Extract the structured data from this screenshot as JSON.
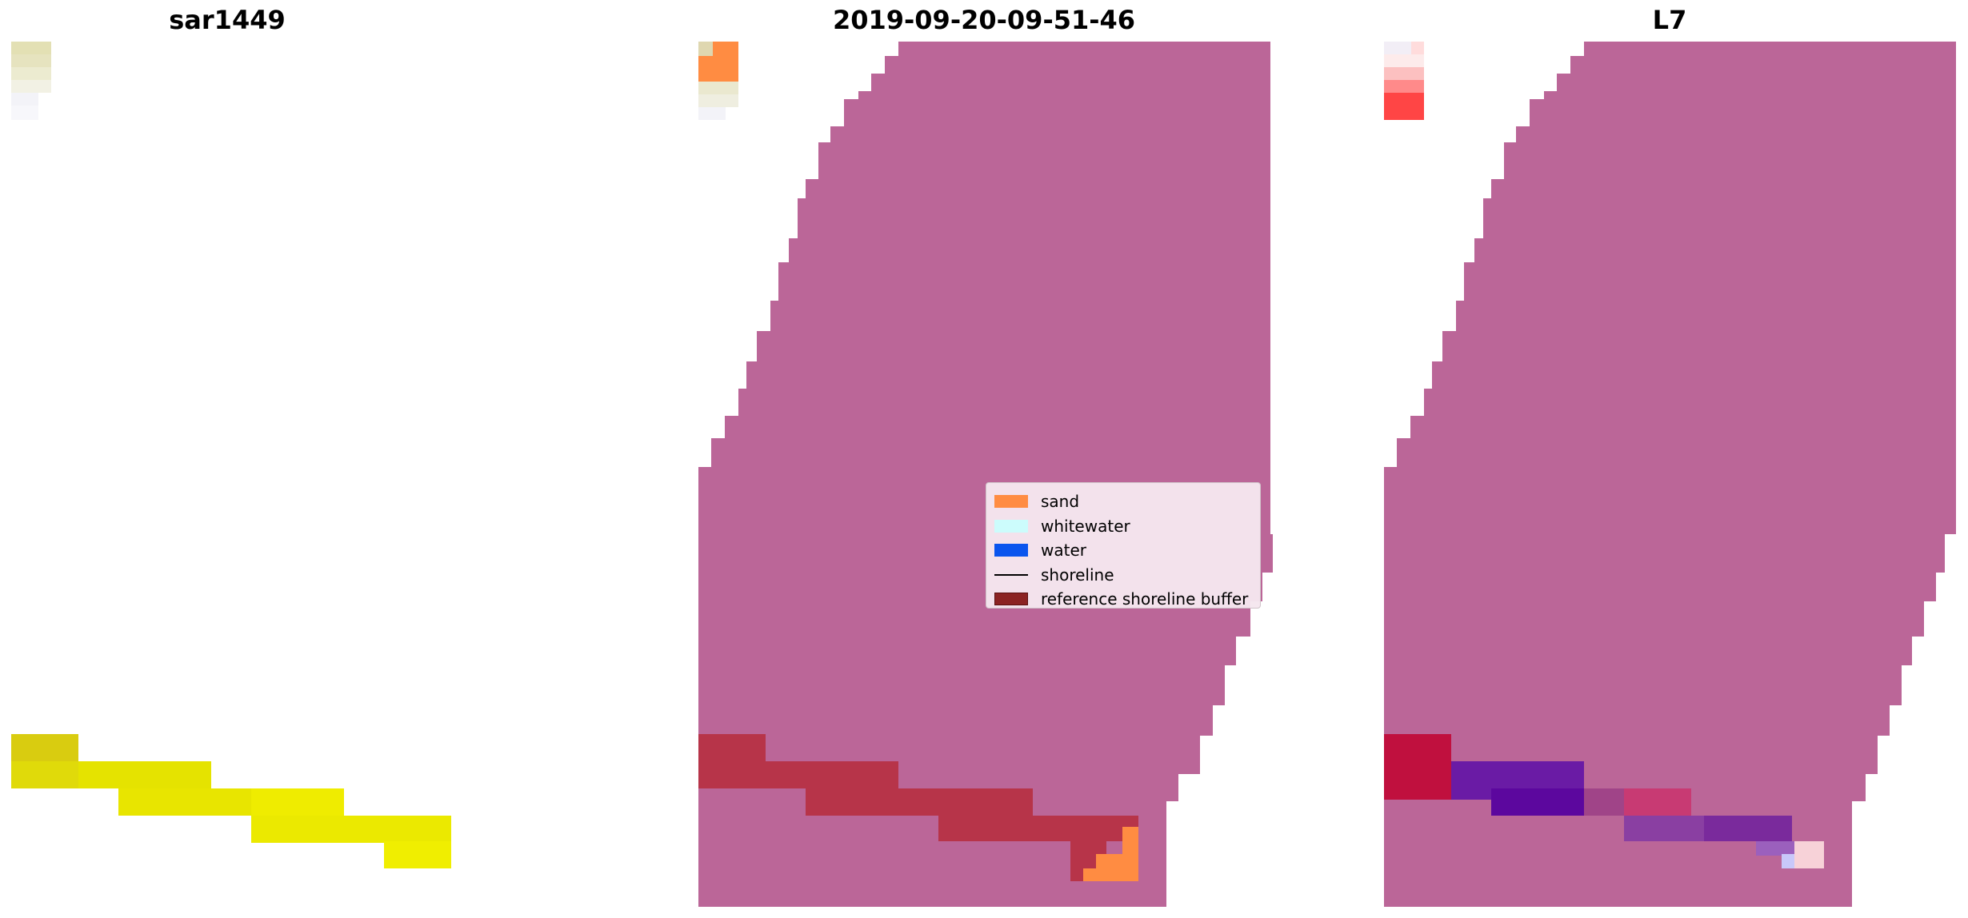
{
  "panels": {
    "left": {
      "title": "sar1449"
    },
    "middle": {
      "title": "2019-09-20-09-51-46"
    },
    "right": {
      "title": "L7"
    }
  },
  "legend": {
    "items": [
      {
        "label": "sand",
        "kind": "patch",
        "color": "#ff8c42"
      },
      {
        "label": "whitewater",
        "kind": "patch",
        "color": "#ccfcfc"
      },
      {
        "label": "water",
        "kind": "patch",
        "color": "#0a55ee"
      },
      {
        "label": "shoreline",
        "kind": "line",
        "color": "#000000"
      },
      {
        "label": "reference shoreline buffer",
        "kind": "patch",
        "color": "#8b2323"
      }
    ]
  },
  "colors": {
    "mask_magenta": "#bb6698",
    "buffer_red": "#b73449",
    "sand_orange": "#ff8c42",
    "yellow": "#f0ec00",
    "crimson": "#c0103e",
    "purple": "#5c079e"
  }
}
